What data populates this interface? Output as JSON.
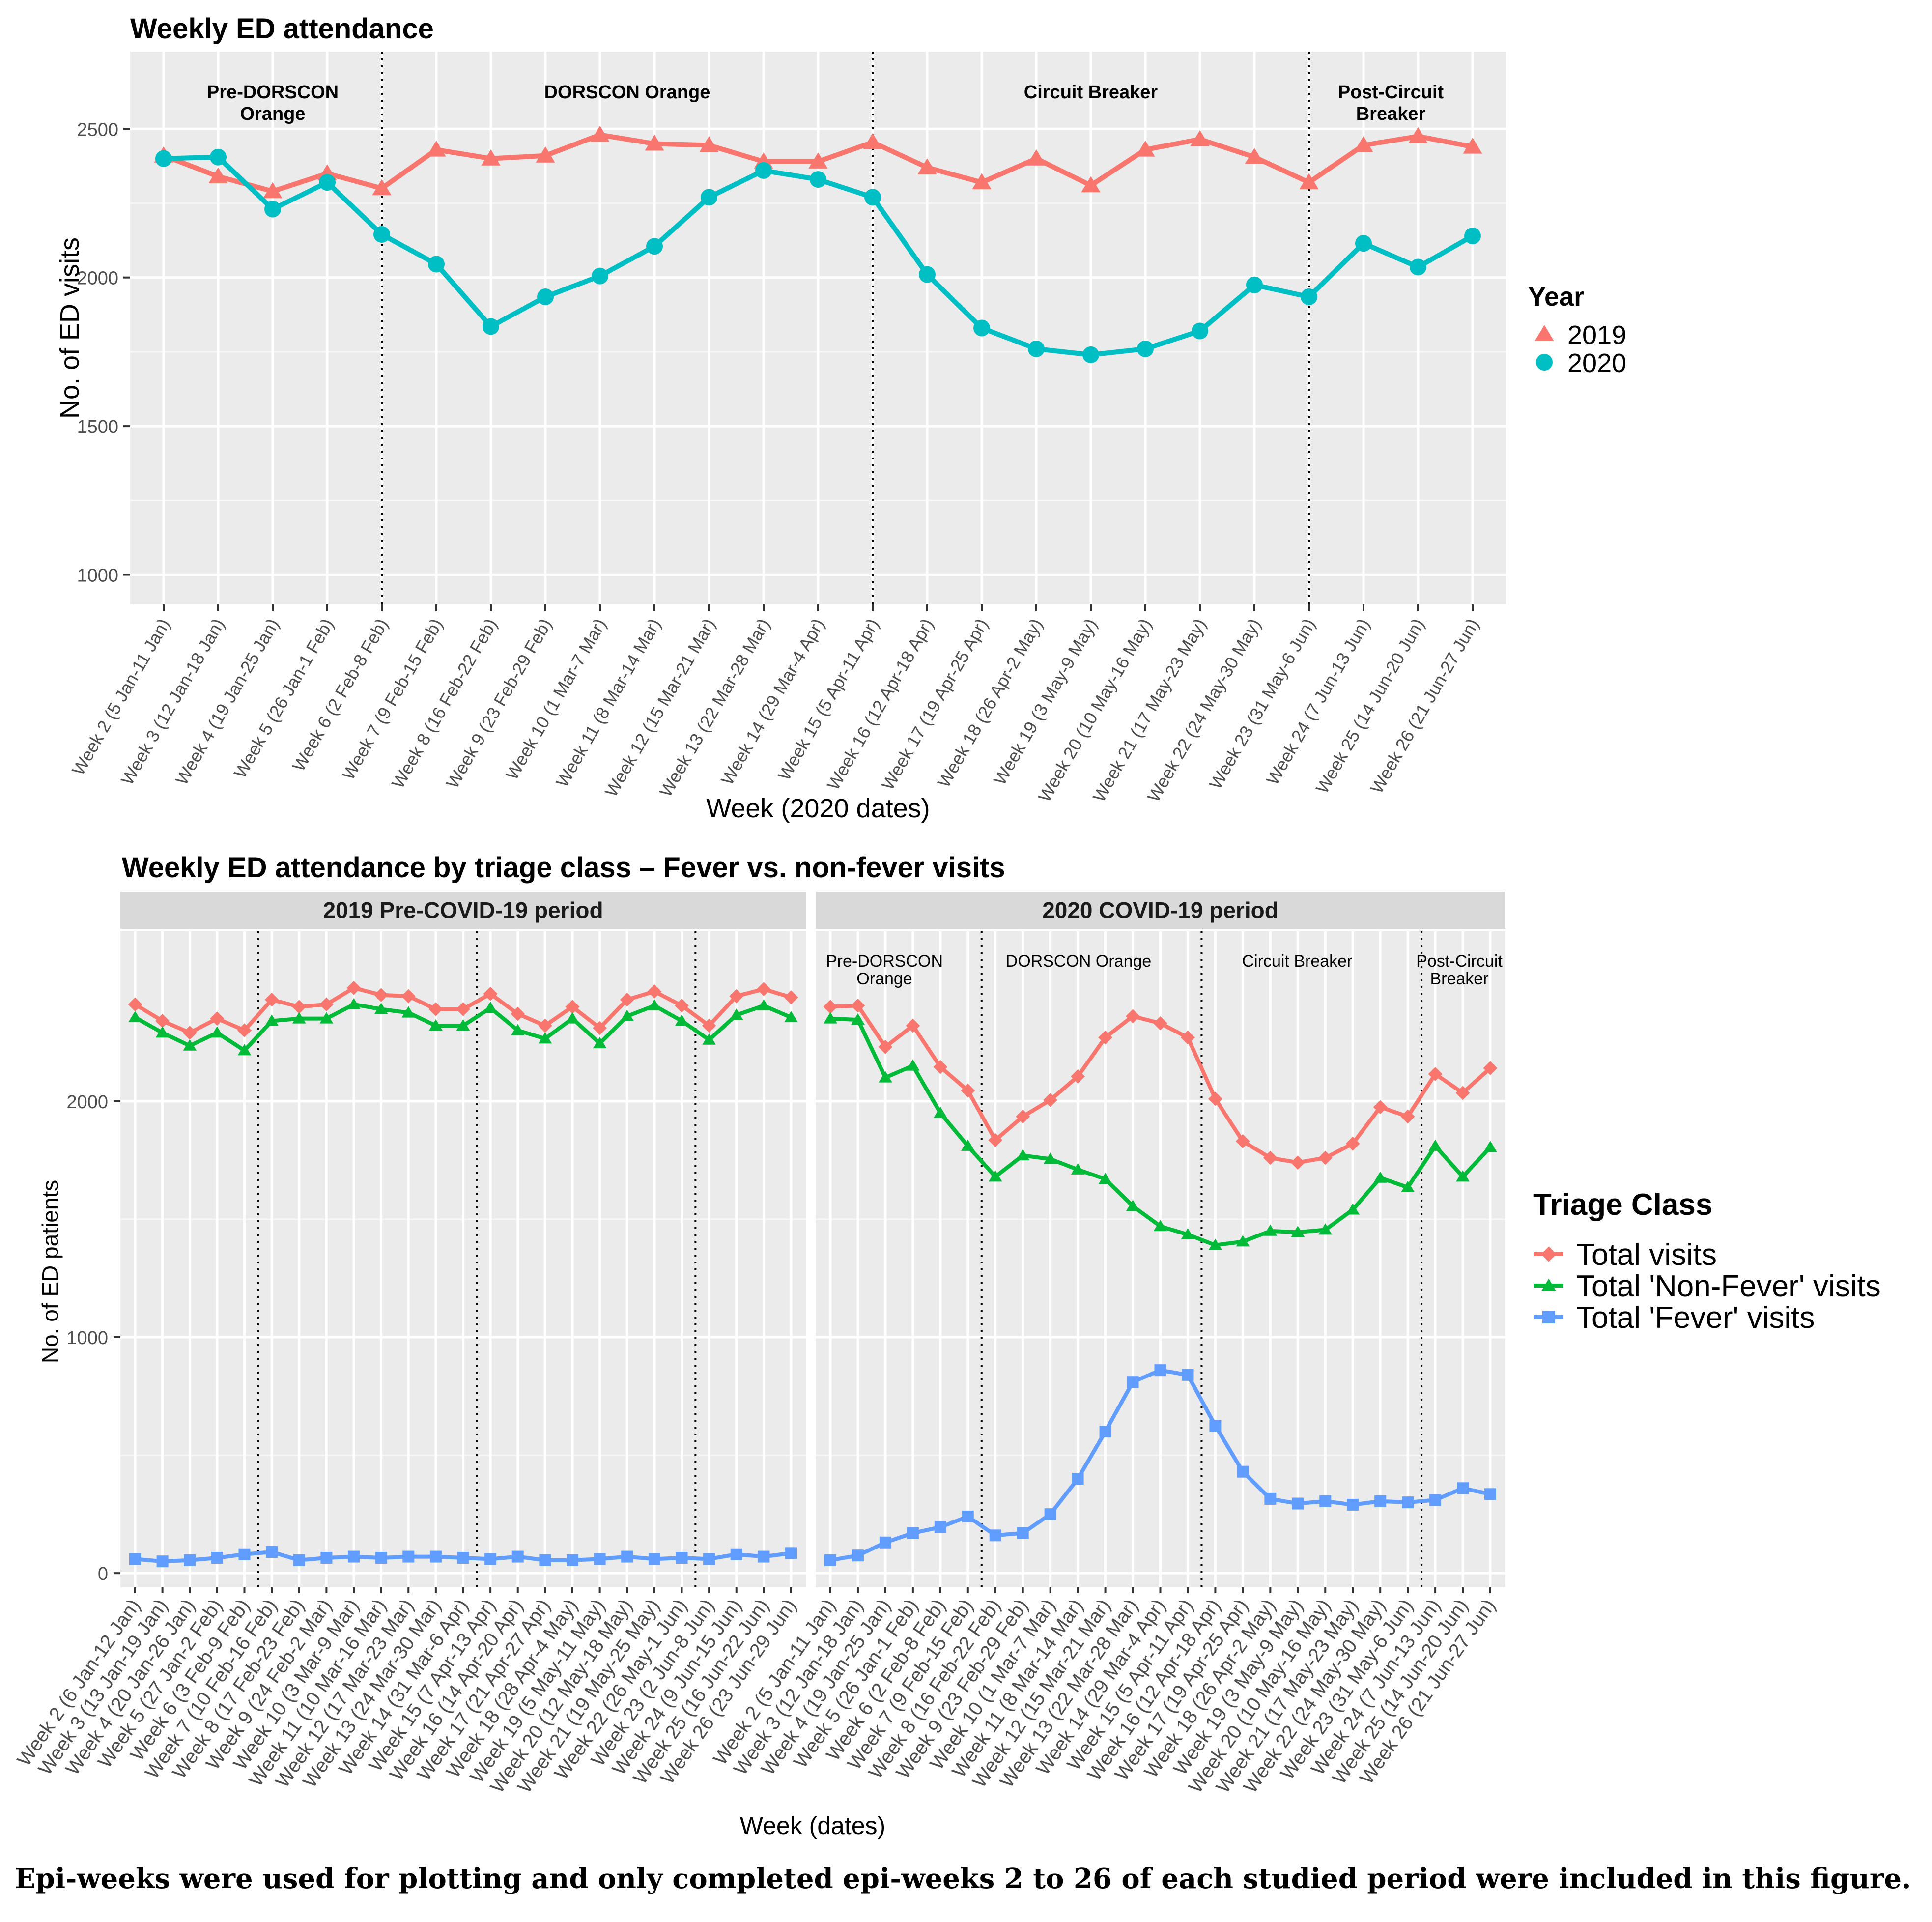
{
  "chart_data": [
    {
      "type": "line",
      "title": "Weekly ED attendance",
      "xlabel": "Week (2020 dates)",
      "ylabel": "No. of ED visits",
      "ylim": [
        900,
        2760
      ],
      "yticks": [
        1000,
        1500,
        2000,
        2500
      ],
      "grid": true,
      "legend": {
        "title": "Year",
        "position": "right"
      },
      "categories": [
        "Week 2 (5 Jan-11 Jan)",
        "Week 3 (12 Jan-18 Jan)",
        "Week 4 (19 Jan-25 Jan)",
        "Week 5 (26 Jan-1 Feb)",
        "Week 6 (2 Feb-8 Feb)",
        "Week 7 (9 Feb-15 Feb)",
        "Week 8 (16 Feb-22 Feb)",
        "Week 9 (23 Feb-29 Feb)",
        "Week 10 (1 Mar-7 Mar)",
        "Week 11 (8 Mar-14 Mar)",
        "Week 12 (15 Mar-21 Mar)",
        "Week 13 (22 Mar-28 Mar)",
        "Week 14 (29 Mar-4 Apr)",
        "Week 15 (5 Apr-11 Apr)",
        "Week 16 (12 Apr-18 Apr)",
        "Week 17 (19 Apr-25 Apr)",
        "Week 18 (26 Apr-2 May)",
        "Week 19 (3 May-9 May)",
        "Week 20 (10 May-16 May)",
        "Week 21 (17 May-23 May)",
        "Week 22 (24 May-30 May)",
        "Week 23 (31 May-6 Jun)",
        "Week 24 (7 Jun-13 Jun)",
        "Week 25 (14 Jun-20 Jun)",
        "Week 26 (21 Jun-27 Jun)"
      ],
      "series": [
        {
          "name": "2019",
          "color": "#F8766D",
          "marker": "triangle",
          "values": [
            2410,
            2340,
            2290,
            2350,
            2300,
            2430,
            2400,
            2410,
            2480,
            2450,
            2445,
            2390,
            2390,
            2455,
            2370,
            2320,
            2400,
            2310,
            2430,
            2465,
            2405,
            2320,
            2445,
            2475,
            2440
          ]
        },
        {
          "name": "2020",
          "color": "#00BFC4",
          "marker": "circle",
          "values": [
            2400,
            2405,
            2230,
            2320,
            2145,
            2045,
            1835,
            1935,
            2005,
            2105,
            2270,
            2360,
            2330,
            2270,
            2010,
            1830,
            1760,
            1740,
            1760,
            1820,
            1975,
            1935,
            2115,
            2035,
            2140
          ]
        }
      ],
      "periods": [
        {
          "label_lines": [
            "Pre-DORSCON",
            "Orange"
          ],
          "start": 0
        },
        {
          "label_lines": [
            "DORSCON Orange"
          ],
          "start": 4
        },
        {
          "label_lines": [
            "Circuit Breaker"
          ],
          "start": 13
        },
        {
          "label_lines": [
            "Post-Circuit",
            "Breaker"
          ],
          "start": 21
        }
      ],
      "dividers_after_index": [
        4,
        13,
        21
      ]
    },
    {
      "type": "line",
      "title": "Weekly ED attendance by triage class – Fever vs. non-fever visits",
      "xlabel": "Week (dates)",
      "ylabel": "No. of ED patients",
      "ylim": [
        -60,
        2720
      ],
      "yticks": [
        0,
        1000,
        2000
      ],
      "grid": true,
      "legend": {
        "title": "Triage Class",
        "position": "right"
      },
      "series_meta": [
        {
          "name": "Total visits",
          "color": "#F8766D",
          "marker": "diamond"
        },
        {
          "name": "Total 'Non-Fever' visits",
          "color": "#00BA38",
          "marker": "triangle"
        },
        {
          "name": "Total 'Fever' visits",
          "color": "#619CFF",
          "marker": "square"
        }
      ],
      "panels": [
        {
          "title": "2019 Pre-COVID-19 period",
          "categories": [
            "Week 2 (6 Jan-12 Jan)",
            "Week 3 (13 Jan-19 Jan)",
            "Week 4 (20 Jan-26 Jan)",
            "Week 5 (27 Jan-2 Feb)",
            "Week 6 (3 Feb-9 Feb)",
            "Week 7 (10 Feb-16 Feb)",
            "Week 8 (17 Feb-23 Feb)",
            "Week 9 (24 Feb-2 Mar)",
            "Week 10 (3 Mar-9 Mar)",
            "Week 11 (10 Mar-16 Mar)",
            "Week 12 (17 Mar-23 Mar)",
            "Week 13 (24 Mar-30 Mar)",
            "Week 14 (31 Mar-6 Apr)",
            "Week 15 (7 Apr-13 Apr)",
            "Week 16 (14 Apr-20 Apr)",
            "Week 17 (21 Apr-27 Apr)",
            "Week 18 (28 Apr-4 May)",
            "Week 19 (5 May-11 May)",
            "Week 20 (12 May-18 May)",
            "Week 21 (19 May-25 May)",
            "Week 22 (26 May-1 Jun)",
            "Week 23 (2 Jun-8 Jun)",
            "Week 24 (9 Jun-15 Jun)",
            "Week 25 (16 Jun-22 Jun)",
            "Week 26 (23 Jun-29 Jun)"
          ],
          "series": [
            {
              "name": "Total visits",
              "values": [
                2410,
                2340,
                2290,
                2350,
                2300,
                2430,
                2400,
                2410,
                2480,
                2450,
                2445,
                2390,
                2390,
                2455,
                2370,
                2320,
                2400,
                2310,
                2430,
                2465,
                2405,
                2320,
                2445,
                2475,
                2440
              ]
            },
            {
              "name": "Total 'Non-Fever' visits",
              "values": [
                2355,
                2290,
                2235,
                2290,
                2215,
                2340,
                2350,
                2350,
                2410,
                2390,
                2375,
                2320,
                2320,
                2395,
                2300,
                2265,
                2350,
                2245,
                2360,
                2405,
                2340,
                2260,
                2365,
                2405,
                2355
              ]
            },
            {
              "name": "Total 'Fever' visits",
              "values": [
                60,
                50,
                55,
                65,
                80,
                90,
                55,
                65,
                70,
                65,
                70,
                70,
                65,
                60,
                70,
                55,
                55,
                60,
                70,
                60,
                65,
                60,
                80,
                70,
                85
              ]
            }
          ],
          "dividers_after_index": [
            4,
            12,
            20
          ]
        },
        {
          "title": "2020 COVID-19 period",
          "categories": [
            "Week 2 (5 Jan-11 Jan)",
            "Week 3 (12 Jan-18 Jan)",
            "Week 4 (19 Jan-25 Jan)",
            "Week 5 (26 Jan-1 Feb)",
            "Week 6 (2 Feb-8 Feb)",
            "Week 7 (9 Feb-15 Feb)",
            "Week 8 (16 Feb-22 Feb)",
            "Week 9 (23 Feb-29 Feb)",
            "Week 10 (1 Mar-7 Mar)",
            "Week 11 (8 Mar-14 Mar)",
            "Week 12 (15 Mar-21 Mar)",
            "Week 13 (22 Mar-28 Mar)",
            "Week 14 (29 Mar-4 Apr)",
            "Week 15 (5 Apr-11 Apr)",
            "Week 16 (12 Apr-18 Apr)",
            "Week 17 (19 Apr-25 Apr)",
            "Week 18 (26 Apr-2 May)",
            "Week 19 (3 May-9 May)",
            "Week 20 (10 May-16 May)",
            "Week 21 (17 May-23 May)",
            "Week 22 (24 May-30 May)",
            "Week 23 (31 May-6 Jun)",
            "Week 24 (7 Jun-13 Jun)",
            "Week 25 (14 Jun-20 Jun)",
            "Week 26 (21 Jun-27 Jun)"
          ],
          "series": [
            {
              "name": "Total visits",
              "values": [
                2400,
                2405,
                2230,
                2320,
                2145,
                2045,
                1835,
                1935,
                2005,
                2105,
                2270,
                2360,
                2330,
                2270,
                2010,
                1830,
                1760,
                1740,
                1760,
                1820,
                1975,
                1935,
                2115,
                2035,
                2140
              ]
            },
            {
              "name": "Total 'Non-Fever' visits",
              "values": [
                2350,
                2345,
                2100,
                2150,
                1950,
                1810,
                1680,
                1770,
                1755,
                1710,
                1670,
                1555,
                1470,
                1435,
                1390,
                1405,
                1450,
                1445,
                1455,
                1540,
                1675,
                1635,
                1810,
                1680,
                1805
              ]
            },
            {
              "name": "Total 'Fever' visits",
              "values": [
                55,
                75,
                130,
                170,
                195,
                240,
                160,
                170,
                250,
                400,
                600,
                810,
                860,
                840,
                625,
                430,
                315,
                295,
                305,
                290,
                305,
                300,
                310,
                360,
                335
              ]
            }
          ],
          "periods": [
            {
              "label_lines": [
                "Pre-DORSCON",
                "Orange"
              ],
              "start": 0
            },
            {
              "label_lines": [
                "DORSCON Orange"
              ],
              "start": 5
            },
            {
              "label_lines": [
                "Circuit Breaker"
              ],
              "start": 13
            },
            {
              "label_lines": [
                "Post-Circuit",
                "Breaker"
              ],
              "start": 21
            }
          ],
          "dividers_after_index": [
            5,
            13,
            21
          ]
        }
      ]
    }
  ],
  "caption": "Epi-weeks were used for plotting and only completed epi-weeks 2 to 26 of each studied period were included in this figure."
}
